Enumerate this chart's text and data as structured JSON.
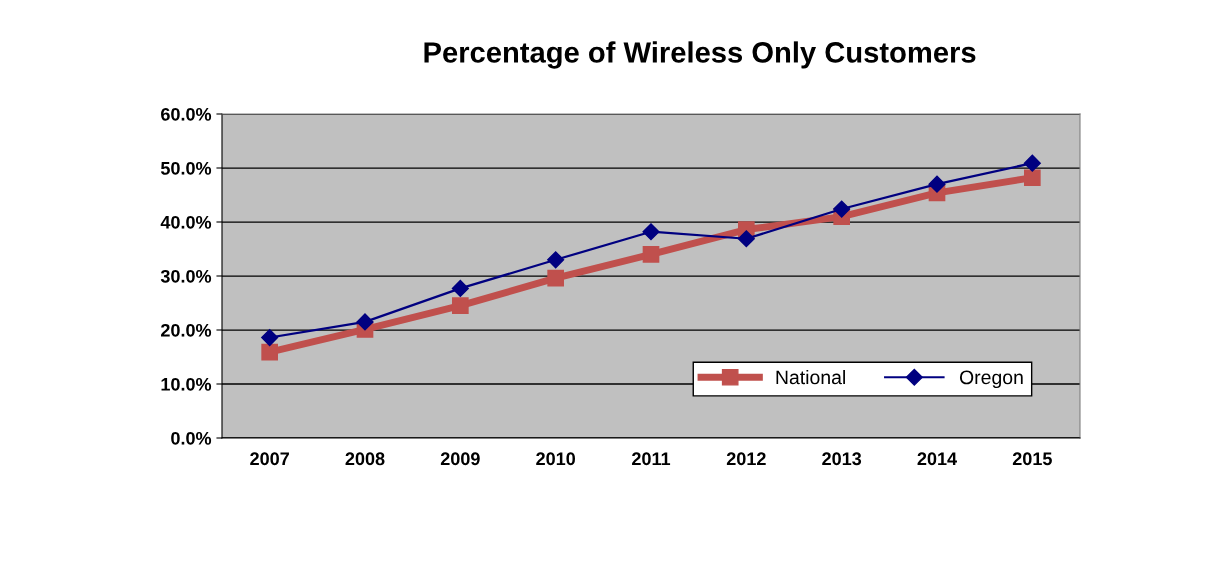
{
  "chart_data": {
    "type": "line",
    "title": "Percentage of Wireless Only Customers",
    "categories": [
      "2007",
      "2008",
      "2009",
      "2010",
      "2011",
      "2012",
      "2013",
      "2014",
      "2015"
    ],
    "series": [
      {
        "name": "National",
        "color": "#c0504d",
        "marker": "square",
        "values": [
          15.9,
          20.1,
          24.5,
          29.6,
          34.0,
          38.6,
          41.0,
          45.4,
          48.2
        ]
      },
      {
        "name": "Oregon",
        "color": "#000080",
        "marker": "diamond",
        "values": [
          18.6,
          21.5,
          27.7,
          33.0,
          38.2,
          36.9,
          42.4,
          47.0,
          50.9
        ]
      }
    ],
    "ylim": [
      0,
      60
    ],
    "yticks": [
      {
        "value": 0,
        "label": "0.0%"
      },
      {
        "value": 10,
        "label": "10.0%"
      },
      {
        "value": 20,
        "label": "20.0%"
      },
      {
        "value": 30,
        "label": "30.0%"
      },
      {
        "value": 40,
        "label": "40.0%"
      },
      {
        "value": 50,
        "label": "50.0%"
      },
      {
        "value": 60,
        "label": "60.0%"
      }
    ],
    "grid": "y",
    "legend": "bottom right",
    "line_style": "solid"
  }
}
